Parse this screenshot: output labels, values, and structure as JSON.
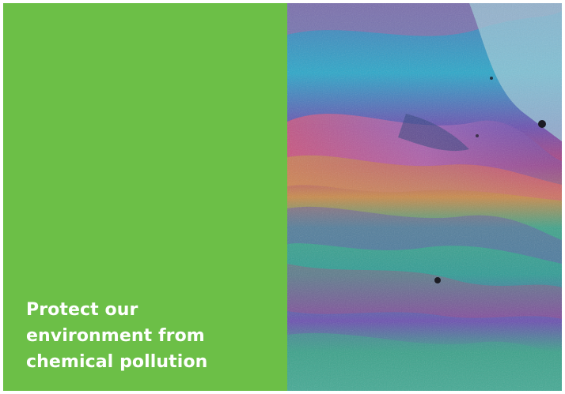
{
  "card": {
    "headline": "Protect our environment from chemical pollution",
    "image": {
      "subject": "oil-sheen-rainbow-image",
      "colors": [
        "#2aa7c9",
        "#6a4fb0",
        "#b5427b",
        "#c98a4a",
        "#3fa38a",
        "#9cc9d8"
      ]
    },
    "panel_color": "#6cbf47"
  }
}
